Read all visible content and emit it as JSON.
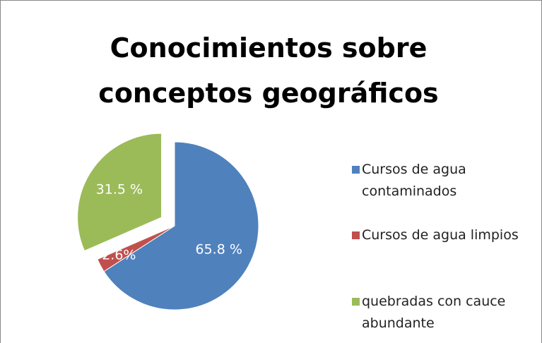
{
  "chart_data": {
    "type": "pie",
    "title": "Conocimientos sobre conceptos geográficos",
    "categories": [
      "Cursos de agua contaminados",
      "Cursos de agua limpios",
      "quebradas con cauce abundante"
    ],
    "values": [
      65.8,
      2.6,
      31.5
    ],
    "value_labels": [
      "65.8 %",
      "2.6%",
      "31.5 %"
    ],
    "colors": [
      "#4f81bd",
      "#c0504d",
      "#9bbb59"
    ],
    "explode": [
      false,
      false,
      true
    ],
    "legend": "right"
  }
}
